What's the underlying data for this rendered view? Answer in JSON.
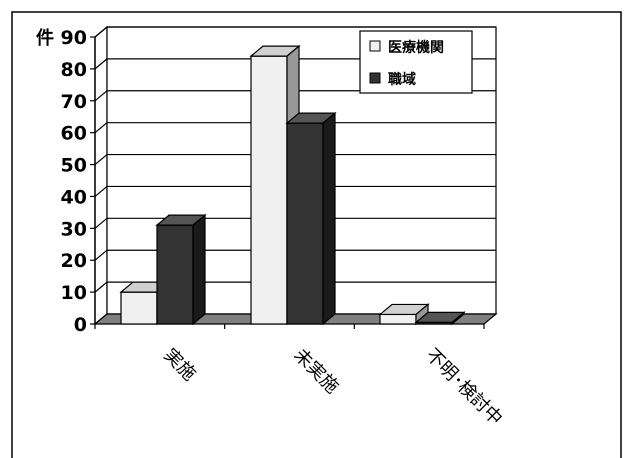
{
  "chart_data": {
    "type": "bar",
    "y_unit": "件",
    "ylim": [
      0,
      90
    ],
    "yticks": [
      0,
      10,
      20,
      30,
      40,
      50,
      60,
      70,
      80,
      90
    ],
    "categories": [
      "実施",
      "未実施",
      "不明･検討中"
    ],
    "series": [
      {
        "name": "医療機関",
        "values": [
          10,
          84,
          3
        ],
        "color": "#f0f0f0",
        "side": "#999999",
        "top": "#d0d0d0"
      },
      {
        "name": "職域",
        "values": [
          31,
          63,
          0.5
        ],
        "color": "#333333",
        "side": "#1a1a1a",
        "top": "#555555"
      }
    ],
    "grid": true,
    "legend_position": "top-right"
  }
}
